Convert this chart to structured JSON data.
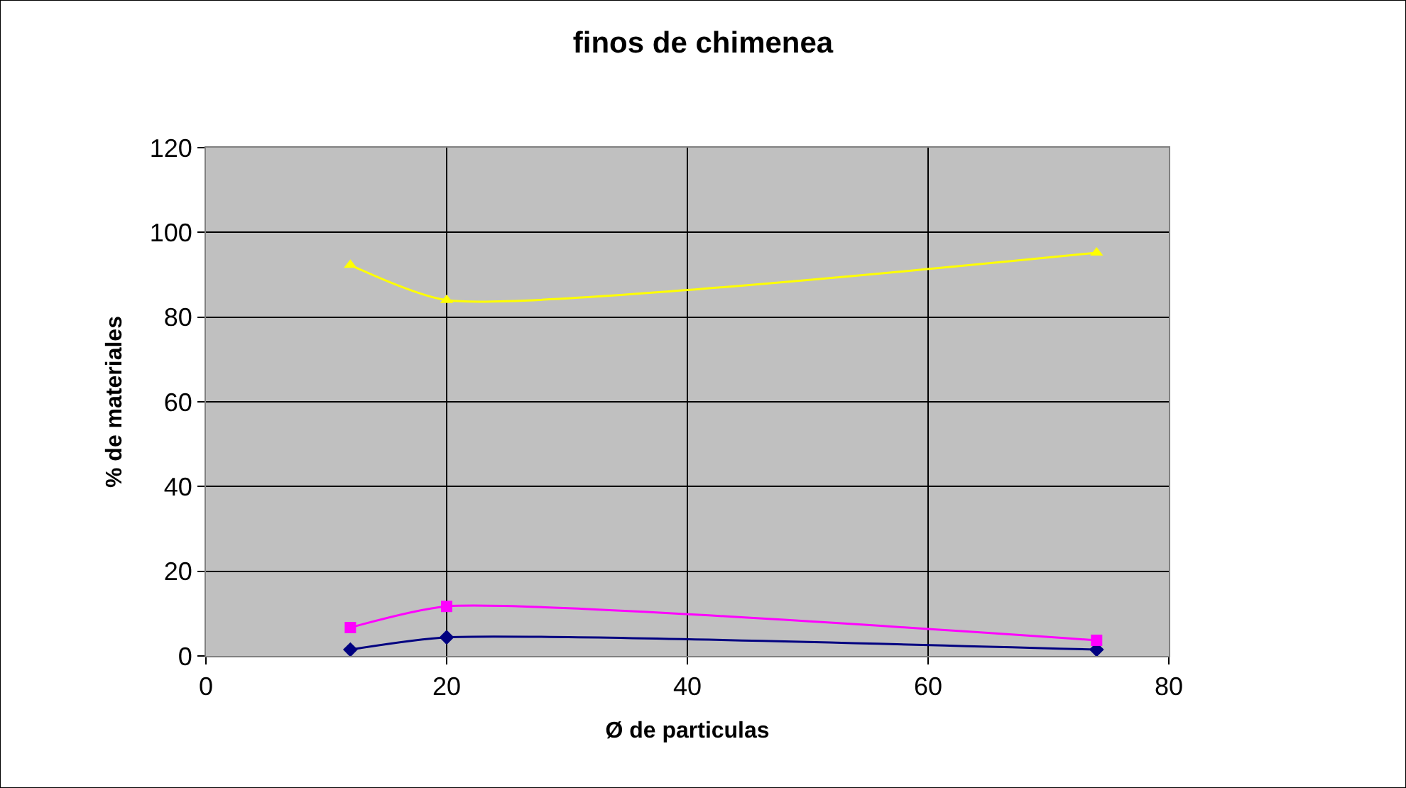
{
  "chart_data": {
    "type": "line",
    "title": "finos de chimenea",
    "xlabel": "Ø de particulas",
    "ylabel": "% de materiales",
    "x": [
      12,
      20,
      74
    ],
    "series": [
      {
        "color": "#000080",
        "values": [
          1.5,
          4.4,
          1.5
        ],
        "marker": "diamond"
      },
      {
        "color": "#ff00ff",
        "values": [
          6.7,
          11.7,
          3.7
        ],
        "marker": "square"
      },
      {
        "color": "#ffff00",
        "values": [
          92.3,
          84,
          95.2
        ],
        "marker": "triangle"
      }
    ],
    "xlim": [
      0,
      80
    ],
    "xticks": [
      0,
      20,
      40,
      60,
      80
    ],
    "ylim": [
      0,
      120
    ],
    "yticks": [
      0,
      20,
      40,
      60,
      80,
      100,
      120
    ],
    "grid": true,
    "line_style": "solid"
  }
}
